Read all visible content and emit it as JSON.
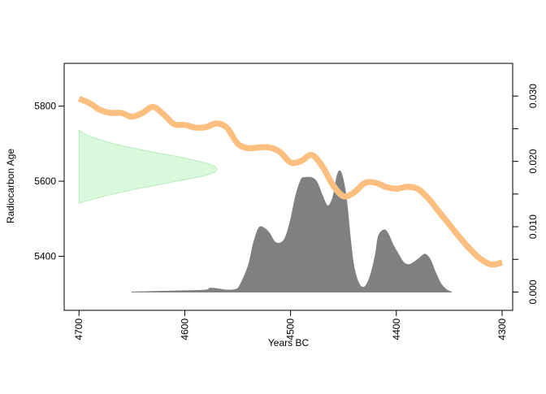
{
  "chart_data": {
    "type": "area",
    "title": "",
    "xlabel": "Years BC",
    "ylabel": "Radiocarbon Age",
    "x_reversed": true,
    "xlim": [
      4714,
      4290
    ],
    "ylim": [
      5256,
      5914
    ],
    "y2lim": [
      -0.0028,
      0.035
    ],
    "x_ticks": [
      4700,
      4600,
      4500,
      4400,
      4300
    ],
    "y_ticks": [
      5400,
      5600,
      5800
    ],
    "y2_ticks": [
      0.0,
      0.01,
      0.02,
      0.03
    ],
    "y2_minor_ticks": [
      0.0,
      0.005,
      0.01,
      0.015,
      0.02,
      0.025,
      0.03
    ],
    "y2_tick_labels": [
      "0.000",
      "0.010",
      "0.020",
      "0.030"
    ],
    "grid": false,
    "legend": "none",
    "colors": {
      "calibration_curve": "#FDBF7F",
      "radiocarbon_density": "#DAF8DC",
      "radiocarbon_density_edge": "#B8EEBC",
      "calibrated_density": "#808080",
      "axis": "#000000"
    },
    "series": [
      {
        "role": "calibration_curve",
        "x": [
          4700,
          4690,
          4680,
          4670,
          4660,
          4650,
          4640,
          4630,
          4620,
          4610,
          4600,
          4590,
          4580,
          4570,
          4560,
          4550,
          4540,
          4530,
          4520,
          4510,
          4500,
          4490,
          4480,
          4470,
          4460,
          4450,
          4440,
          4430,
          4420,
          4410,
          4400,
          4390,
          4380,
          4370,
          4360,
          4350,
          4340,
          4330,
          4320,
          4310,
          4300
        ],
        "y": [
          5820,
          5808,
          5790,
          5782,
          5782,
          5772,
          5782,
          5798,
          5778,
          5752,
          5750,
          5743,
          5744,
          5754,
          5742,
          5700,
          5688,
          5690,
          5690,
          5678,
          5650,
          5654,
          5670,
          5640,
          5590,
          5560,
          5570,
          5595,
          5596,
          5585,
          5580,
          5585,
          5580,
          5555,
          5520,
          5485,
          5450,
          5418,
          5392,
          5378,
          5384
        ],
        "band_halfwidth": 8
      },
      {
        "role": "radiocarbon_density",
        "baseline_x": 4700,
        "y": [
          5542,
          5560,
          5580,
          5600,
          5620,
          5640,
          5660,
          5680,
          5700,
          5720,
          5736
        ],
        "density": [
          0.0,
          0.18,
          0.42,
          0.7,
          0.95,
          0.97,
          0.78,
          0.5,
          0.25,
          0.08,
          0.0
        ],
        "peak_x": 4568
      },
      {
        "role": "calibrated_density",
        "x": [
          4650,
          4600,
          4580,
          4575,
          4560,
          4552,
          4548,
          4540,
          4535,
          4530,
          4525,
          4520,
          4515,
          4510,
          4505,
          4500,
          4495,
          4490,
          4487,
          4480,
          4475,
          4470,
          4465,
          4460,
          4456,
          4453,
          4450,
          4447,
          4443,
          4440,
          4435,
          4430,
          4425,
          4420,
          4417,
          4412,
          4408,
          4403,
          4398,
          4393,
          4388,
          4383,
          4378,
          4373,
          4368,
          4363,
          4358,
          4353,
          4348
        ],
        "y": [
          0.0,
          0.0002,
          0.0003,
          0.0006,
          0.0003,
          0.0004,
          0.001,
          0.004,
          0.0075,
          0.0098,
          0.0098,
          0.009,
          0.0077,
          0.0075,
          0.0083,
          0.011,
          0.0148,
          0.0172,
          0.0175,
          0.0175,
          0.0168,
          0.0148,
          0.0132,
          0.0145,
          0.0178,
          0.0185,
          0.017,
          0.014,
          0.0075,
          0.0038,
          0.0012,
          0.0008,
          0.0023,
          0.0055,
          0.0085,
          0.0095,
          0.009,
          0.0072,
          0.0058,
          0.0045,
          0.0042,
          0.0046,
          0.0052,
          0.0058,
          0.005,
          0.003,
          0.0013,
          0.0004,
          0.0
        ]
      }
    ]
  }
}
